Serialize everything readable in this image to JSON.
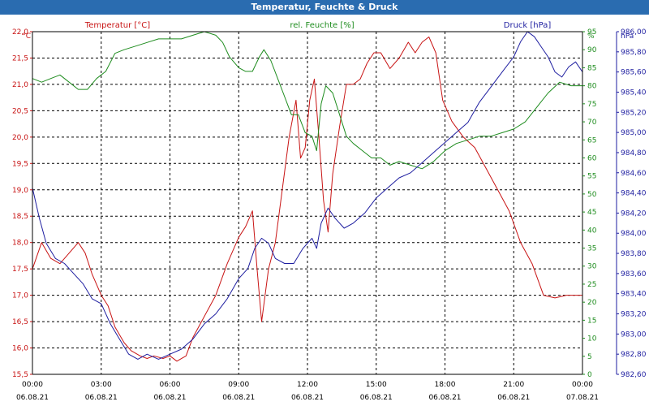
{
  "window": {
    "title": "Temperatur, Feuchte & Druck"
  },
  "colors": {
    "temperature": "#c81414",
    "humidity": "#1e8c1e",
    "pressure": "#1e1ea0",
    "title_bar": "#2a6cb0",
    "grid": "#000000"
  },
  "chart_data": {
    "type": "line",
    "title": "Temperatur, Feuchte & Druck",
    "x_tick_labels": [
      {
        "time": "00:00",
        "date": "06.08.21"
      },
      {
        "time": "03:00",
        "date": "06.08.21"
      },
      {
        "time": "06:00",
        "date": "06.08.21"
      },
      {
        "time": "09:00",
        "date": "06.08.21"
      },
      {
        "time": "12:00",
        "date": "06.08.21"
      },
      {
        "time": "15:00",
        "date": "06.08.21"
      },
      {
        "time": "18:00",
        "date": "06.08.21"
      },
      {
        "time": "21:00",
        "date": "06.08.21"
      },
      {
        "time": "00:00",
        "date": "07.08.21"
      }
    ],
    "x_range_hours": [
      0,
      24
    ],
    "axes": {
      "temperature": {
        "label": "Temperatur [°C]",
        "unit": "°C",
        "min": 15.5,
        "max": 22.0,
        "step": 0.5,
        "ticks": [
          "15,5",
          "16,0",
          "16,5",
          "17,0",
          "17,5",
          "18,0",
          "18,5",
          "19,0",
          "19,5",
          "20,0",
          "20,5",
          "21,0",
          "21,5",
          "22,0"
        ]
      },
      "humidity": {
        "label": "rel. Feuchte [%]",
        "unit": "%",
        "min": 0,
        "max": 95,
        "step": 5,
        "ticks": [
          "0",
          "5",
          "10",
          "15",
          "20",
          "25",
          "30",
          "35",
          "40",
          "45",
          "50",
          "55",
          "60",
          "65",
          "70",
          "75",
          "80",
          "85",
          "90",
          "95"
        ]
      },
      "pressure": {
        "label": "Druck [hPa]",
        "unit": "hPa",
        "min": 982.6,
        "max": 986.0,
        "step": 0.2,
        "ticks": [
          "982,60",
          "982,80",
          "983,00",
          "983,20",
          "983,40",
          "983,60",
          "983,80",
          "984,00",
          "984,20",
          "984,40",
          "984,60",
          "984,80",
          "985,00",
          "985,20",
          "985,40",
          "985,60",
          "985,80",
          "986,00"
        ]
      }
    },
    "grid": true,
    "series": [
      {
        "name": "Temperatur [°C]",
        "axis": "temperature",
        "points": [
          [
            0,
            17.5
          ],
          [
            0.4,
            18.0
          ],
          [
            0.8,
            17.7
          ],
          [
            1.2,
            17.6
          ],
          [
            1.6,
            17.8
          ],
          [
            2.0,
            18.0
          ],
          [
            2.3,
            17.8
          ],
          [
            2.6,
            17.4
          ],
          [
            3.0,
            17.0
          ],
          [
            3.3,
            16.8
          ],
          [
            3.6,
            16.4
          ],
          [
            4.0,
            16.1
          ],
          [
            4.3,
            15.95
          ],
          [
            4.7,
            15.85
          ],
          [
            5.0,
            15.8
          ],
          [
            5.3,
            15.85
          ],
          [
            5.7,
            15.8
          ],
          [
            6.0,
            15.85
          ],
          [
            6.3,
            15.75
          ],
          [
            6.7,
            15.85
          ],
          [
            7.0,
            16.2
          ],
          [
            7.5,
            16.6
          ],
          [
            8.0,
            17.0
          ],
          [
            8.5,
            17.6
          ],
          [
            9.0,
            18.1
          ],
          [
            9.3,
            18.3
          ],
          [
            9.6,
            18.6
          ],
          [
            9.8,
            17.5
          ],
          [
            10.0,
            16.5
          ],
          [
            10.3,
            17.5
          ],
          [
            10.6,
            18.0
          ],
          [
            10.9,
            19.0
          ],
          [
            11.2,
            20.0
          ],
          [
            11.5,
            20.7
          ],
          [
            11.7,
            19.6
          ],
          [
            11.9,
            19.8
          ],
          [
            12.1,
            20.7
          ],
          [
            12.3,
            21.1
          ],
          [
            12.5,
            20.0
          ],
          [
            12.7,
            18.8
          ],
          [
            12.9,
            18.2
          ],
          [
            13.1,
            19.3
          ],
          [
            13.4,
            20.2
          ],
          [
            13.7,
            21.0
          ],
          [
            14.0,
            21.0
          ],
          [
            14.3,
            21.1
          ],
          [
            14.6,
            21.4
          ],
          [
            14.9,
            21.6
          ],
          [
            15.2,
            21.6
          ],
          [
            15.6,
            21.3
          ],
          [
            16.0,
            21.5
          ],
          [
            16.4,
            21.8
          ],
          [
            16.7,
            21.6
          ],
          [
            17.0,
            21.8
          ],
          [
            17.3,
            21.9
          ],
          [
            17.6,
            21.6
          ],
          [
            17.9,
            20.7
          ],
          [
            18.3,
            20.3
          ],
          [
            18.8,
            20.0
          ],
          [
            19.3,
            19.8
          ],
          [
            19.8,
            19.4
          ],
          [
            20.3,
            19.0
          ],
          [
            20.8,
            18.6
          ],
          [
            21.3,
            18.0
          ],
          [
            21.8,
            17.6
          ],
          [
            22.3,
            17.0
          ],
          [
            22.8,
            16.95
          ],
          [
            23.3,
            17.0
          ],
          [
            24.0,
            17.0
          ]
        ]
      },
      {
        "name": "rel. Feuchte [%]",
        "axis": "humidity",
        "points": [
          [
            0,
            82
          ],
          [
            0.4,
            81
          ],
          [
            0.8,
            82
          ],
          [
            1.2,
            83
          ],
          [
            1.6,
            81
          ],
          [
            2.0,
            79
          ],
          [
            2.4,
            79
          ],
          [
            2.8,
            82
          ],
          [
            3.2,
            84
          ],
          [
            3.6,
            89
          ],
          [
            4.0,
            90
          ],
          [
            4.5,
            91
          ],
          [
            5.0,
            92
          ],
          [
            5.5,
            93
          ],
          [
            6.0,
            93
          ],
          [
            6.5,
            93
          ],
          [
            7.0,
            94
          ],
          [
            7.5,
            95
          ],
          [
            8.0,
            94
          ],
          [
            8.3,
            92
          ],
          [
            8.6,
            88
          ],
          [
            9.0,
            85
          ],
          [
            9.3,
            84
          ],
          [
            9.6,
            84
          ],
          [
            9.9,
            88
          ],
          [
            10.1,
            90
          ],
          [
            10.4,
            87
          ],
          [
            10.7,
            82
          ],
          [
            11.0,
            77
          ],
          [
            11.3,
            72
          ],
          [
            11.6,
            72
          ],
          [
            11.9,
            67
          ],
          [
            12.2,
            66
          ],
          [
            12.4,
            62
          ],
          [
            12.6,
            75
          ],
          [
            12.8,
            80
          ],
          [
            13.1,
            78
          ],
          [
            13.4,
            72
          ],
          [
            13.7,
            66
          ],
          [
            14.0,
            64
          ],
          [
            14.4,
            62
          ],
          [
            14.8,
            60
          ],
          [
            15.2,
            60
          ],
          [
            15.6,
            58
          ],
          [
            16.0,
            59
          ],
          [
            16.5,
            58
          ],
          [
            17.0,
            57
          ],
          [
            17.5,
            59
          ],
          [
            18.0,
            62
          ],
          [
            18.5,
            64
          ],
          [
            19.0,
            65
          ],
          [
            19.5,
            66
          ],
          [
            20.0,
            66
          ],
          [
            20.5,
            67
          ],
          [
            21.0,
            68
          ],
          [
            21.5,
            70
          ],
          [
            22.0,
            74
          ],
          [
            22.5,
            78
          ],
          [
            23.0,
            81
          ],
          [
            23.5,
            80
          ],
          [
            24.0,
            80
          ]
        ]
      },
      {
        "name": "Druck [hPa]",
        "axis": "pressure",
        "points": [
          [
            0,
            984.45
          ],
          [
            0.3,
            984.15
          ],
          [
            0.6,
            983.9
          ],
          [
            1.0,
            983.75
          ],
          [
            1.4,
            983.7
          ],
          [
            1.8,
            983.6
          ],
          [
            2.2,
            983.5
          ],
          [
            2.6,
            983.35
          ],
          [
            3.0,
            983.3
          ],
          [
            3.4,
            983.1
          ],
          [
            3.8,
            982.95
          ],
          [
            4.2,
            982.8
          ],
          [
            4.6,
            982.75
          ],
          [
            5.0,
            982.8
          ],
          [
            5.5,
            982.75
          ],
          [
            6.0,
            982.8
          ],
          [
            6.5,
            982.85
          ],
          [
            7.0,
            982.95
          ],
          [
            7.5,
            983.1
          ],
          [
            8.0,
            983.2
          ],
          [
            8.5,
            983.35
          ],
          [
            9.0,
            983.55
          ],
          [
            9.4,
            983.65
          ],
          [
            9.7,
            983.85
          ],
          [
            10.0,
            983.95
          ],
          [
            10.3,
            983.9
          ],
          [
            10.6,
            983.75
          ],
          [
            11.0,
            983.7
          ],
          [
            11.4,
            983.7
          ],
          [
            11.8,
            983.85
          ],
          [
            12.2,
            983.95
          ],
          [
            12.4,
            983.85
          ],
          [
            12.6,
            984.1
          ],
          [
            12.9,
            984.25
          ],
          [
            13.2,
            984.15
          ],
          [
            13.6,
            984.05
          ],
          [
            14.0,
            984.1
          ],
          [
            14.5,
            984.2
          ],
          [
            15.0,
            984.35
          ],
          [
            15.5,
            984.45
          ],
          [
            16.0,
            984.55
          ],
          [
            16.5,
            984.6
          ],
          [
            17.0,
            984.7
          ],
          [
            17.5,
            984.8
          ],
          [
            18.0,
            984.9
          ],
          [
            18.5,
            985.0
          ],
          [
            19.0,
            985.1
          ],
          [
            19.5,
            985.3
          ],
          [
            20.0,
            985.45
          ],
          [
            20.5,
            985.6
          ],
          [
            21.0,
            985.75
          ],
          [
            21.3,
            985.9
          ],
          [
            21.6,
            986.0
          ],
          [
            21.9,
            985.95
          ],
          [
            22.2,
            985.85
          ],
          [
            22.5,
            985.75
          ],
          [
            22.8,
            985.6
          ],
          [
            23.1,
            985.55
          ],
          [
            23.4,
            985.65
          ],
          [
            23.7,
            985.7
          ],
          [
            24.0,
            985.6
          ]
        ]
      }
    ]
  }
}
